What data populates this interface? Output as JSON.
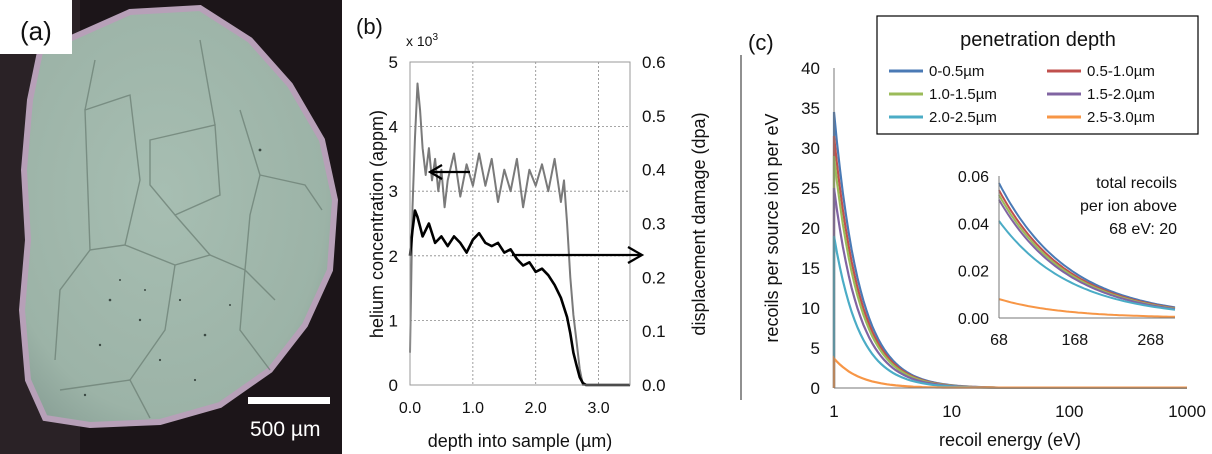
{
  "colors": {
    "micrograph_bg": "#9fb6aa",
    "micrograph_edge": "#1a1418",
    "series_gray": "#7a7a7a",
    "series_black": "#000000",
    "inset_series": [
      "#4a7ab5",
      "#c0504d",
      "#9bbb59",
      "#8064a2",
      "#4bacc6",
      "#f79646"
    ]
  },
  "panel_a": {
    "label": "(a)",
    "scalebar_text": "500 µm"
  },
  "chart_data": [
    {
      "panel": "(b)",
      "type": "line",
      "multiplier_label": "x 10",
      "multiplier_exp": "3",
      "xlabel": "depth into sample (µm)",
      "ylabel_left": "helium concentration (appm)",
      "ylabel_right": "displacement damage (dpa)",
      "xlim": [
        0,
        3.5
      ],
      "ylim_left": [
        0,
        5
      ],
      "ylim_right": [
        0,
        0.6
      ],
      "x_ticks": [
        "0.0",
        "1.0",
        "2.0",
        "3.0"
      ],
      "y_left_ticks": [
        "0",
        "1",
        "2",
        "3",
        "4",
        "5"
      ],
      "y_right_ticks": [
        "0.0",
        "0.1",
        "0.2",
        "0.3",
        "0.4",
        "0.5",
        "0.6"
      ],
      "grid": true,
      "series": [
        {
          "axis": "right",
          "color": "#7a7a7a",
          "x": [
            0.0,
            0.04,
            0.08,
            0.12,
            0.16,
            0.2,
            0.25,
            0.3,
            0.35,
            0.4,
            0.45,
            0.5,
            0.55,
            0.6,
            0.7,
            0.8,
            0.9,
            1.0,
            1.1,
            1.2,
            1.3,
            1.4,
            1.5,
            1.6,
            1.7,
            1.8,
            1.9,
            2.0,
            2.1,
            2.2,
            2.3,
            2.4,
            2.45,
            2.5,
            2.55,
            2.6,
            2.65,
            2.7,
            2.75,
            2.8,
            2.85,
            3.5
          ],
          "y": [
            0.06,
            0.33,
            0.46,
            0.56,
            0.51,
            0.44,
            0.39,
            0.44,
            0.38,
            0.42,
            0.36,
            0.4,
            0.33,
            0.38,
            0.43,
            0.35,
            0.41,
            0.37,
            0.43,
            0.37,
            0.42,
            0.34,
            0.4,
            0.36,
            0.42,
            0.33,
            0.4,
            0.37,
            0.41,
            0.36,
            0.42,
            0.34,
            0.38,
            0.3,
            0.2,
            0.13,
            0.08,
            0.03,
            0.0,
            0.0,
            0.0,
            0.0
          ]
        },
        {
          "axis": "left",
          "color": "#000000",
          "x": [
            0.0,
            0.04,
            0.08,
            0.12,
            0.16,
            0.2,
            0.3,
            0.4,
            0.5,
            0.6,
            0.7,
            0.8,
            0.9,
            1.0,
            1.1,
            1.2,
            1.3,
            1.4,
            1.5,
            1.6,
            1.7,
            1.8,
            1.9,
            2.0,
            2.1,
            2.2,
            2.3,
            2.4,
            2.5,
            2.55,
            2.6,
            2.65,
            2.7,
            2.75,
            2.8,
            3.5
          ],
          "y": [
            2.0,
            2.4,
            2.7,
            2.6,
            2.45,
            2.3,
            2.5,
            2.2,
            2.3,
            2.15,
            2.3,
            2.2,
            2.05,
            2.25,
            2.35,
            2.2,
            2.15,
            2.2,
            2.05,
            2.1,
            1.95,
            1.85,
            1.9,
            1.75,
            1.8,
            1.7,
            1.55,
            1.35,
            1.05,
            0.8,
            0.5,
            0.3,
            0.12,
            0.03,
            0.0,
            0.0
          ]
        }
      ]
    },
    {
      "panel": "(c)",
      "type": "line",
      "xscale": "log",
      "xlabel": "recoil energy (eV)",
      "ylabel": "recoils per source ion per eV",
      "xlim": [
        1,
        1000
      ],
      "ylim": [
        0,
        40
      ],
      "x_ticks": [
        "1",
        "10",
        "100",
        "1000"
      ],
      "y_ticks": [
        "0",
        "5",
        "10",
        "15",
        "20",
        "25",
        "30",
        "35",
        "40"
      ],
      "grid": false,
      "legend": {
        "title": "penetration depth",
        "placement": "top-right"
      },
      "series": [
        {
          "name": "0-0.5µm",
          "color": "#4a7ab5",
          "peak": 34.5
        },
        {
          "name": "0.5-1.0µm",
          "color": "#c0504d",
          "peak": 31.5
        },
        {
          "name": "1.0-1.5µm",
          "color": "#9bbb59",
          "peak": 29.0
        },
        {
          "name": "1.5-2.0µm",
          "color": "#8064a2",
          "peak": 25.0
        },
        {
          "name": "2.0-2.5µm",
          "color": "#4bacc6",
          "peak": 19.0
        },
        {
          "name": "2.5-3.0µm",
          "color": "#f79646",
          "peak": 3.7
        }
      ]
    },
    {
      "panel": "(c) inset",
      "type": "line",
      "xlim": [
        68,
        300
      ],
      "ylim": [
        0,
        0.06
      ],
      "x_ticks": [
        "68",
        "168",
        "268"
      ],
      "y_ticks": [
        "0.00",
        "0.02",
        "0.04",
        "0.06"
      ],
      "annotation": [
        "total recoils",
        "per ion above",
        "68 eV: 20"
      ],
      "series": [
        {
          "color": "#4a7ab5",
          "y_at_68": 0.057,
          "y_at_300": 0.0045
        },
        {
          "color": "#c0504d",
          "y_at_68": 0.054,
          "y_at_300": 0.0042
        },
        {
          "color": "#9bbb59",
          "y_at_68": 0.052,
          "y_at_300": 0.004
        },
        {
          "color": "#8064a2",
          "y_at_68": 0.05,
          "y_at_300": 0.0038
        },
        {
          "color": "#4bacc6",
          "y_at_68": 0.041,
          "y_at_300": 0.0035
        },
        {
          "color": "#f79646",
          "y_at_68": 0.008,
          "y_at_300": 0.0005
        }
      ]
    }
  ]
}
